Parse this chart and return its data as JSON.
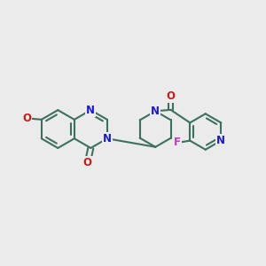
{
  "background_color": "#ebebeb",
  "bond_color": "#3d7060",
  "bond_width": 1.5,
  "atom_colors": {
    "N": "#1a1acc",
    "O": "#cc1a1a",
    "F": "#cc33cc",
    "C": "#3d7060"
  },
  "font_size_atom": 8.5,
  "figsize": [
    3.0,
    3.0
  ],
  "dpi": 100
}
